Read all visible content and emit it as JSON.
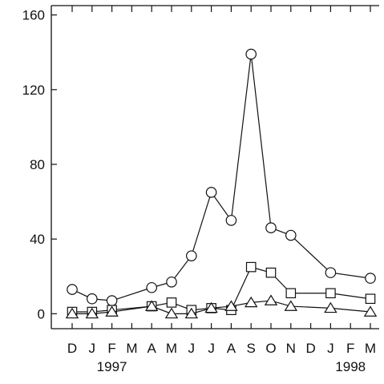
{
  "chart_data": {
    "type": "line",
    "title": "",
    "xlabel": "",
    "ylabel": "",
    "categories": [
      "D",
      "J",
      "F",
      "M",
      "A",
      "M",
      "J",
      "J",
      "A",
      "S",
      "O",
      "N",
      "D",
      "J",
      "F",
      "M"
    ],
    "year_labels": [
      {
        "text": "1997",
        "category_index": 2
      },
      {
        "text": "1998",
        "category_index": 14
      }
    ],
    "ylim": [
      -8,
      165
    ],
    "yticks": [
      0,
      40,
      80,
      120,
      160
    ],
    "grid": false,
    "legend": "none",
    "series": [
      {
        "marker": "circle",
        "points": [
          {
            "i": 0,
            "y": 13
          },
          {
            "i": 1,
            "y": 8
          },
          {
            "i": 2,
            "y": 7
          },
          {
            "i": 4,
            "y": 14
          },
          {
            "i": 5,
            "y": 17
          },
          {
            "i": 6,
            "y": 31
          },
          {
            "i": 7,
            "y": 65
          },
          {
            "i": 8,
            "y": 50
          },
          {
            "i": 9,
            "y": 139
          },
          {
            "i": 10,
            "y": 46
          },
          {
            "i": 11,
            "y": 42
          },
          {
            "i": 13,
            "y": 22
          },
          {
            "i": 15,
            "y": 19
          }
        ]
      },
      {
        "marker": "square",
        "points": [
          {
            "i": 0,
            "y": 1
          },
          {
            "i": 1,
            "y": 1
          },
          {
            "i": 2,
            "y": 2
          },
          {
            "i": 4,
            "y": 4
          },
          {
            "i": 5,
            "y": 6
          },
          {
            "i": 6,
            "y": 2
          },
          {
            "i": 7,
            "y": 3
          },
          {
            "i": 8,
            "y": 2
          },
          {
            "i": 9,
            "y": 25
          },
          {
            "i": 10,
            "y": 22
          },
          {
            "i": 11,
            "y": 11
          },
          {
            "i": 13,
            "y": 11
          },
          {
            "i": 15,
            "y": 8
          }
        ]
      },
      {
        "marker": "triangle",
        "points": [
          {
            "i": 0,
            "y": 0
          },
          {
            "i": 1,
            "y": 0
          },
          {
            "i": 2,
            "y": 1
          },
          {
            "i": 4,
            "y": 4
          },
          {
            "i": 5,
            "y": 0
          },
          {
            "i": 6,
            "y": 0
          },
          {
            "i": 7,
            "y": 3
          },
          {
            "i": 8,
            "y": 4
          },
          {
            "i": 9,
            "y": 6
          },
          {
            "i": 10,
            "y": 7
          },
          {
            "i": 11,
            "y": 4
          },
          {
            "i": 13,
            "y": 3
          },
          {
            "i": 15,
            "y": 1
          }
        ]
      }
    ]
  }
}
